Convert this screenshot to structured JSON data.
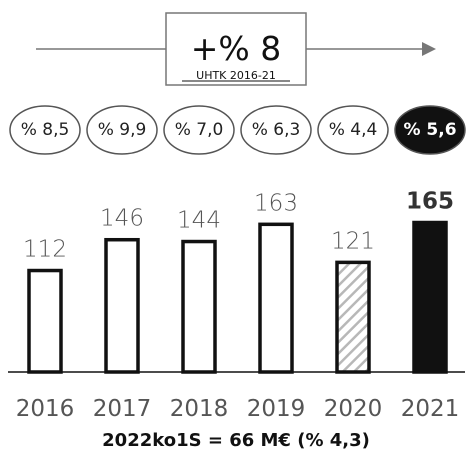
{
  "chart_data": {
    "type": "bar",
    "categories": [
      "2016",
      "2017",
      "2018",
      "2019",
      "2020",
      "2021"
    ],
    "values": [
      112,
      146,
      144,
      163,
      121,
      165
    ],
    "value_labels": [
      "112",
      "146",
      "144",
      "163",
      "121",
      "165"
    ],
    "growth_labels": [
      "% 8,5",
      "% 9,9",
      "% 7,0",
      "% 6,3",
      "% 4,4",
      "% 5,6"
    ],
    "highlight_index": 5,
    "hatched_index": 4,
    "ylim": [
      0,
      200
    ],
    "cagr": {
      "value": "+% 8",
      "label": "UHTK 2016-21"
    },
    "footnote": "2022ko1S = 66 M€ (% 4,3)"
  },
  "colors": {
    "bar_outline": "#111111",
    "highlight_fill": "#111111",
    "hatch": "#b8b8b8",
    "text_muted": "#555555"
  }
}
